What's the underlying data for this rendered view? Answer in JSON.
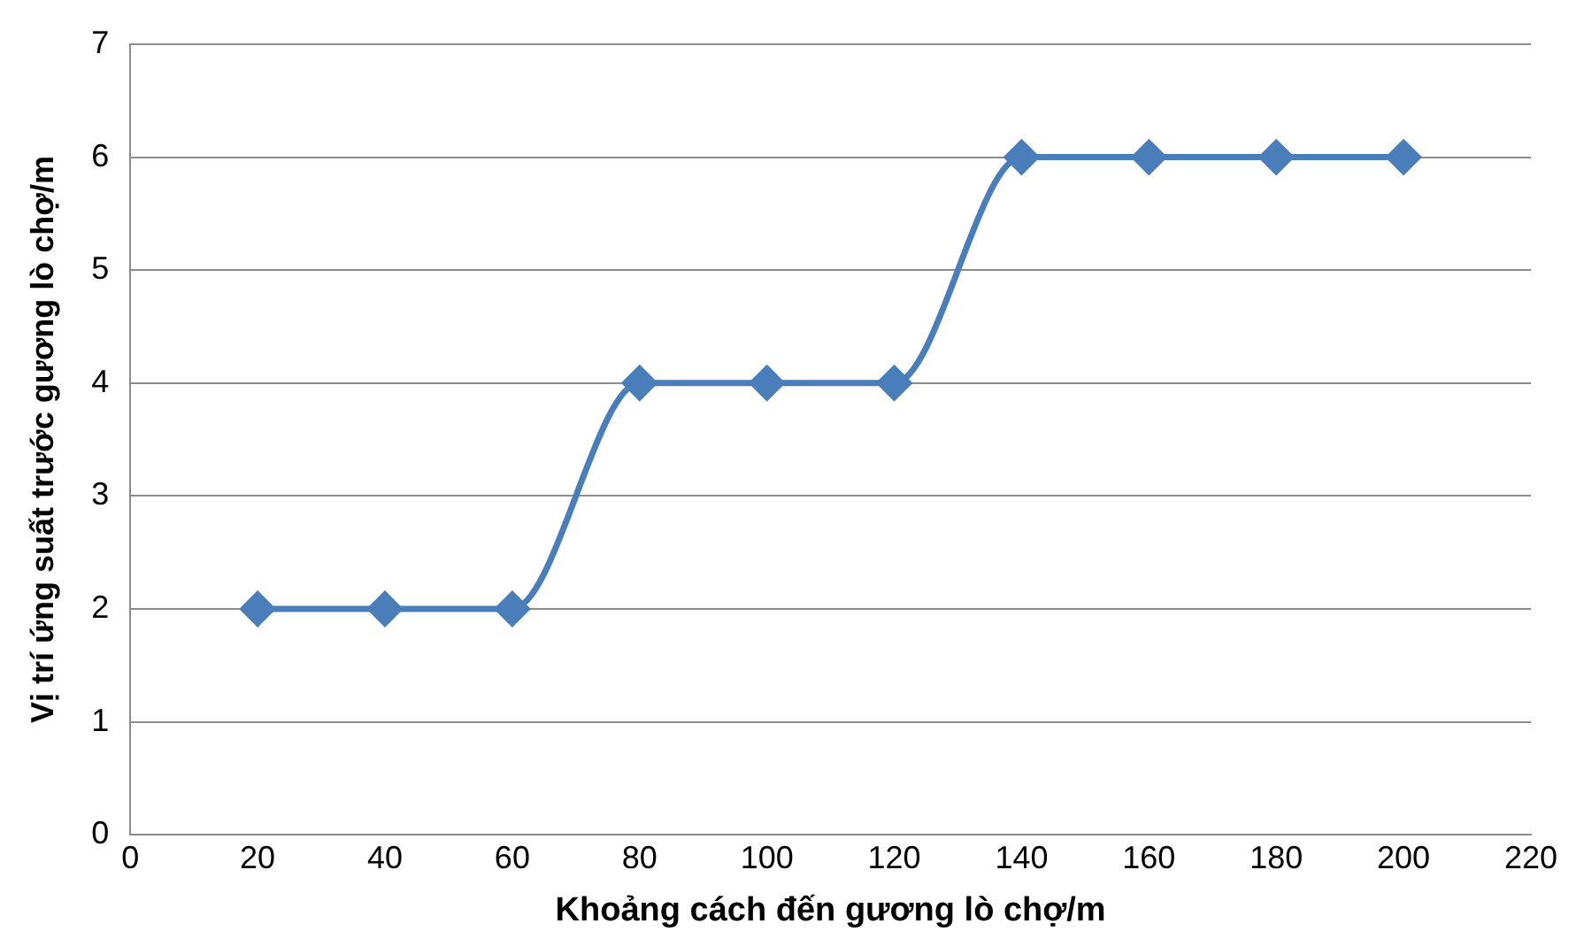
{
  "chart_data": {
    "type": "line",
    "xlabel": "Khoảng cách đến gương lò chợ/m",
    "ylabel": "Vị trí ứng suất trước gương lò chợ/m",
    "x": [
      20,
      40,
      60,
      80,
      100,
      120,
      140,
      160,
      180,
      200
    ],
    "series": [
      {
        "color": "#4a7ebb",
        "values": [
          2,
          2,
          2,
          4,
          4,
          4,
          6,
          6,
          6,
          6
        ]
      }
    ],
    "xlim": [
      0,
      220
    ],
    "xticks": [
      0,
      20,
      40,
      60,
      80,
      100,
      120,
      140,
      160,
      180,
      200,
      220
    ],
    "ylim": [
      0,
      7
    ],
    "yticks": [
      0,
      1,
      2,
      3,
      4,
      5,
      6,
      7
    ],
    "grid": "y",
    "legend": false,
    "marker": "diamond",
    "line_style": "solid"
  }
}
